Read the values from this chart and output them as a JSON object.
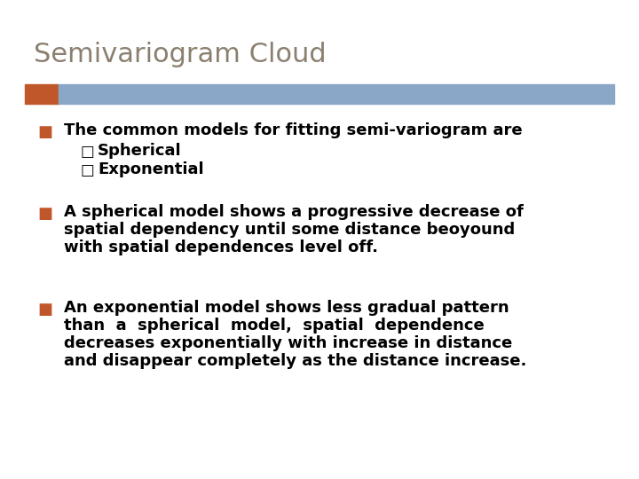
{
  "title": "Semivariogram Cloud",
  "title_color": "#8B8070",
  "title_fontsize": 22,
  "title_font": "Georgia",
  "bg_color": "#FFFFFF",
  "bar_left_color": "#C0572A",
  "bar_main_color": "#8BA7C7",
  "bullet_color": "#C0572A",
  "bullet_char": "■",
  "sub_bullet_char": "□",
  "bullet1": "The common models for fitting semi-variogram are",
  "sub1": "Spherical",
  "sub2": "Exponential",
  "bullet2_line1": "A spherical model shows a progressive decrease of",
  "bullet2_line2": "spatial dependency until some distance beoyound",
  "bullet2_line3": "with spatial dependences level off.",
  "bullet3_line1": "An exponential model shows less gradual pattern",
  "bullet3_line2": "than  a  spherical  model,  spatial  dependence",
  "bullet3_line3": "decreases exponentially with increase in distance",
  "bullet3_line4": "and disappear completely as the distance increase.",
  "text_color": "#000000",
  "text_fontsize": 13,
  "text_font": "Georgia"
}
